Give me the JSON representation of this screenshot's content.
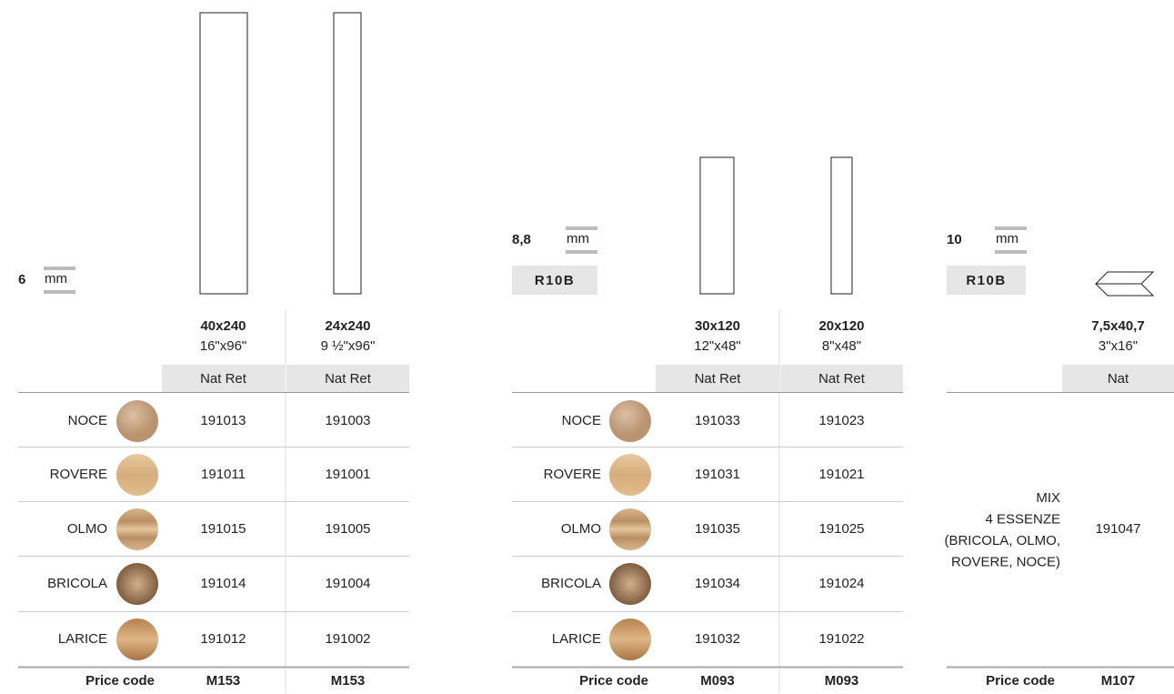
{
  "sections": [
    {
      "thickness": "6",
      "unit": "mm",
      "formats": [
        {
          "size": "40x240",
          "inch": "16\"x96\"",
          "finish": "Nat Ret"
        },
        {
          "size": "24x240",
          "inch": "9 ½\"x96\"",
          "finish": "Nat Ret"
        }
      ],
      "rows": [
        {
          "name": "NOCE",
          "codes": [
            "191013",
            "191003"
          ]
        },
        {
          "name": "ROVERE",
          "codes": [
            "191011",
            "191001"
          ]
        },
        {
          "name": "OLMO",
          "codes": [
            "191015",
            "191005"
          ]
        },
        {
          "name": "BRICOLA",
          "codes": [
            "191014",
            "191004"
          ]
        },
        {
          "name": "LARICE",
          "codes": [
            "191012",
            "191002"
          ]
        }
      ],
      "price_label": "Price code",
      "price_codes": [
        "M153",
        "M153"
      ]
    },
    {
      "thickness": "8,8",
      "unit": "mm",
      "badge": "R10B",
      "formats": [
        {
          "size": "30x120",
          "inch": "12\"x48\"",
          "finish": "Nat Ret"
        },
        {
          "size": "20x120",
          "inch": "8\"x48\"",
          "finish": "Nat Ret"
        }
      ],
      "rows": [
        {
          "name": "NOCE",
          "codes": [
            "191033",
            "191023"
          ]
        },
        {
          "name": "ROVERE",
          "codes": [
            "191031",
            "191021"
          ]
        },
        {
          "name": "OLMO",
          "codes": [
            "191035",
            "191025"
          ]
        },
        {
          "name": "BRICOLA",
          "codes": [
            "191034",
            "191024"
          ]
        },
        {
          "name": "LARICE",
          "codes": [
            "191032",
            "191022"
          ]
        }
      ],
      "price_label": "Price code",
      "price_codes": [
        "M093",
        "M093"
      ]
    },
    {
      "thickness": "10",
      "unit": "mm",
      "badge": "R10B",
      "formats": [
        {
          "size": "7,5x40,7",
          "inch": "3\"x16\"",
          "finish": "Nat"
        }
      ],
      "mix": [
        "MIX",
        "4 ESSENZE",
        "(BRICOLA, OLMO,",
        "ROVERE, NOCE)"
      ],
      "mix_code": "191047",
      "price_label": "Price code",
      "price_codes": [
        "M107"
      ]
    }
  ]
}
